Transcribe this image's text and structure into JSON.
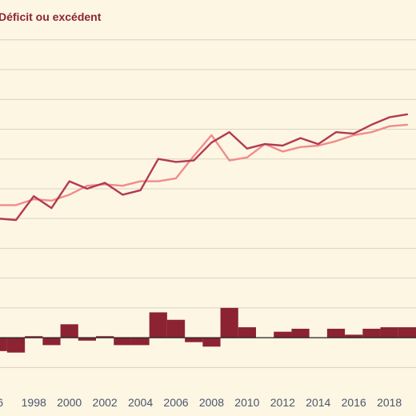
{
  "colors": {
    "background": "#fdf6e3",
    "grid": "#d8d2c1",
    "zero_line": "#222222",
    "line_dark": "#b33a52",
    "line_light": "#f08c8c",
    "bars": "#8c2332",
    "legend_text": "#8c2332",
    "tick_text": "#4a5570"
  },
  "chart_data": {
    "type": "line",
    "title": "",
    "xlabel": "",
    "ylabel": "",
    "x": [
      1996,
      1997,
      1998,
      1999,
      2000,
      2001,
      2002,
      2003,
      2004,
      2005,
      2006,
      2007,
      2008,
      2009,
      2010,
      2011,
      2012,
      2013,
      2014,
      2015,
      2016,
      2017,
      2018,
      2019
    ],
    "xlim": [
      1996.1,
      2019.5
    ],
    "ylim": [
      -2.2,
      10.8
    ],
    "grid": true,
    "x_ticks": [
      "1998",
      "2000",
      "2002",
      "2004",
      "2006",
      "2008",
      "2010",
      "2012",
      "2014",
      "2016",
      "2018"
    ],
    "series": [
      {
        "values": [
          4.0,
          3.95,
          4.75,
          4.35,
          5.25,
          5.0,
          5.2,
          4.8,
          4.95,
          6.0,
          5.9,
          5.95,
          6.55,
          6.9,
          6.35,
          6.5,
          6.45,
          6.7,
          6.5,
          6.9,
          6.85,
          7.15,
          7.4,
          7.5
        ],
        "style": "line",
        "color": "#b33a52"
      },
      {
        "values": [
          4.45,
          4.45,
          4.65,
          4.6,
          4.8,
          5.1,
          5.15,
          5.1,
          5.25,
          5.25,
          5.35,
          6.1,
          6.8,
          5.95,
          6.05,
          6.5,
          6.25,
          6.4,
          6.45,
          6.6,
          6.8,
          6.9,
          7.1,
          7.15
        ],
        "style": "line",
        "color": "#f08c8c"
      },
      {
        "name": "Déficit ou excédent",
        "values": [
          -0.45,
          -0.5,
          0.05,
          -0.25,
          0.45,
          -0.1,
          0.05,
          -0.25,
          -0.25,
          0.85,
          0.6,
          -0.15,
          -0.3,
          1.0,
          0.35,
          0.0,
          0.2,
          0.3,
          0.0,
          0.3,
          0.1,
          0.3,
          0.35,
          0.35
        ],
        "style": "bar",
        "color": "#8c2332"
      }
    ],
    "legend": {
      "position": "top-left",
      "entries": [
        "Déficit ou excédent"
      ]
    }
  }
}
